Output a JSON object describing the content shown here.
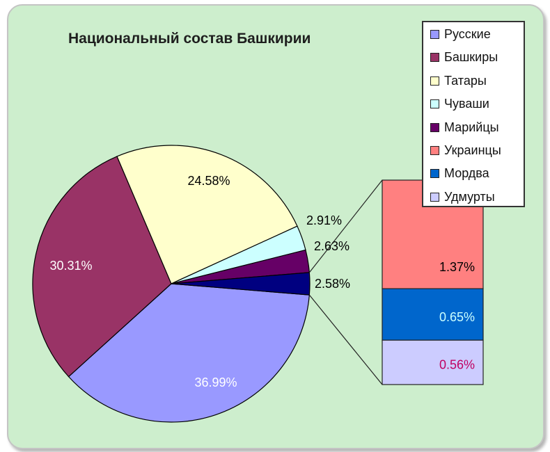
{
  "chart_data": {
    "type": "pie",
    "subtype": "bar-of-pie",
    "title": "Национальный состав Башкирии",
    "series": [
      {
        "name": "Русские",
        "value": 36.99,
        "label": "36.99%",
        "color": "#9999ff",
        "label_color": "#ffffff"
      },
      {
        "name": "Башкиры",
        "value": 30.31,
        "label": "30.31%",
        "color": "#993366",
        "label_color": "#ffffff"
      },
      {
        "name": "Татары",
        "value": 24.58,
        "label": "24.58%",
        "color": "#ffffcc",
        "label_color": "#000000"
      },
      {
        "name": "Чуваши",
        "value": 2.91,
        "label": "2.91%",
        "color": "#ccffff",
        "label_color": "#000000"
      },
      {
        "name": "Марийцы",
        "value": 2.63,
        "label": "2.63%",
        "color": "#660066",
        "label_color": "#000000"
      },
      {
        "name": "Украинцы",
        "value": 1.37,
        "label": "1.37%",
        "color": "#ff8080",
        "label_color": "#000000"
      },
      {
        "name": "Мордва",
        "value": 0.65,
        "label": "0.65%",
        "color": "#0066cc",
        "label_color": "#ccffff"
      },
      {
        "name": "Удмурты",
        "value": 0.56,
        "label": "0.56%",
        "color": "#ccccff",
        "label_color": "#c00060"
      }
    ],
    "other_slice": {
      "value": 2.58,
      "label": "2.58%",
      "color": "#000080"
    },
    "bar_breakdown": [
      "Украинцы",
      "Мордва",
      "Удмурты"
    ],
    "legend_position": "right"
  }
}
